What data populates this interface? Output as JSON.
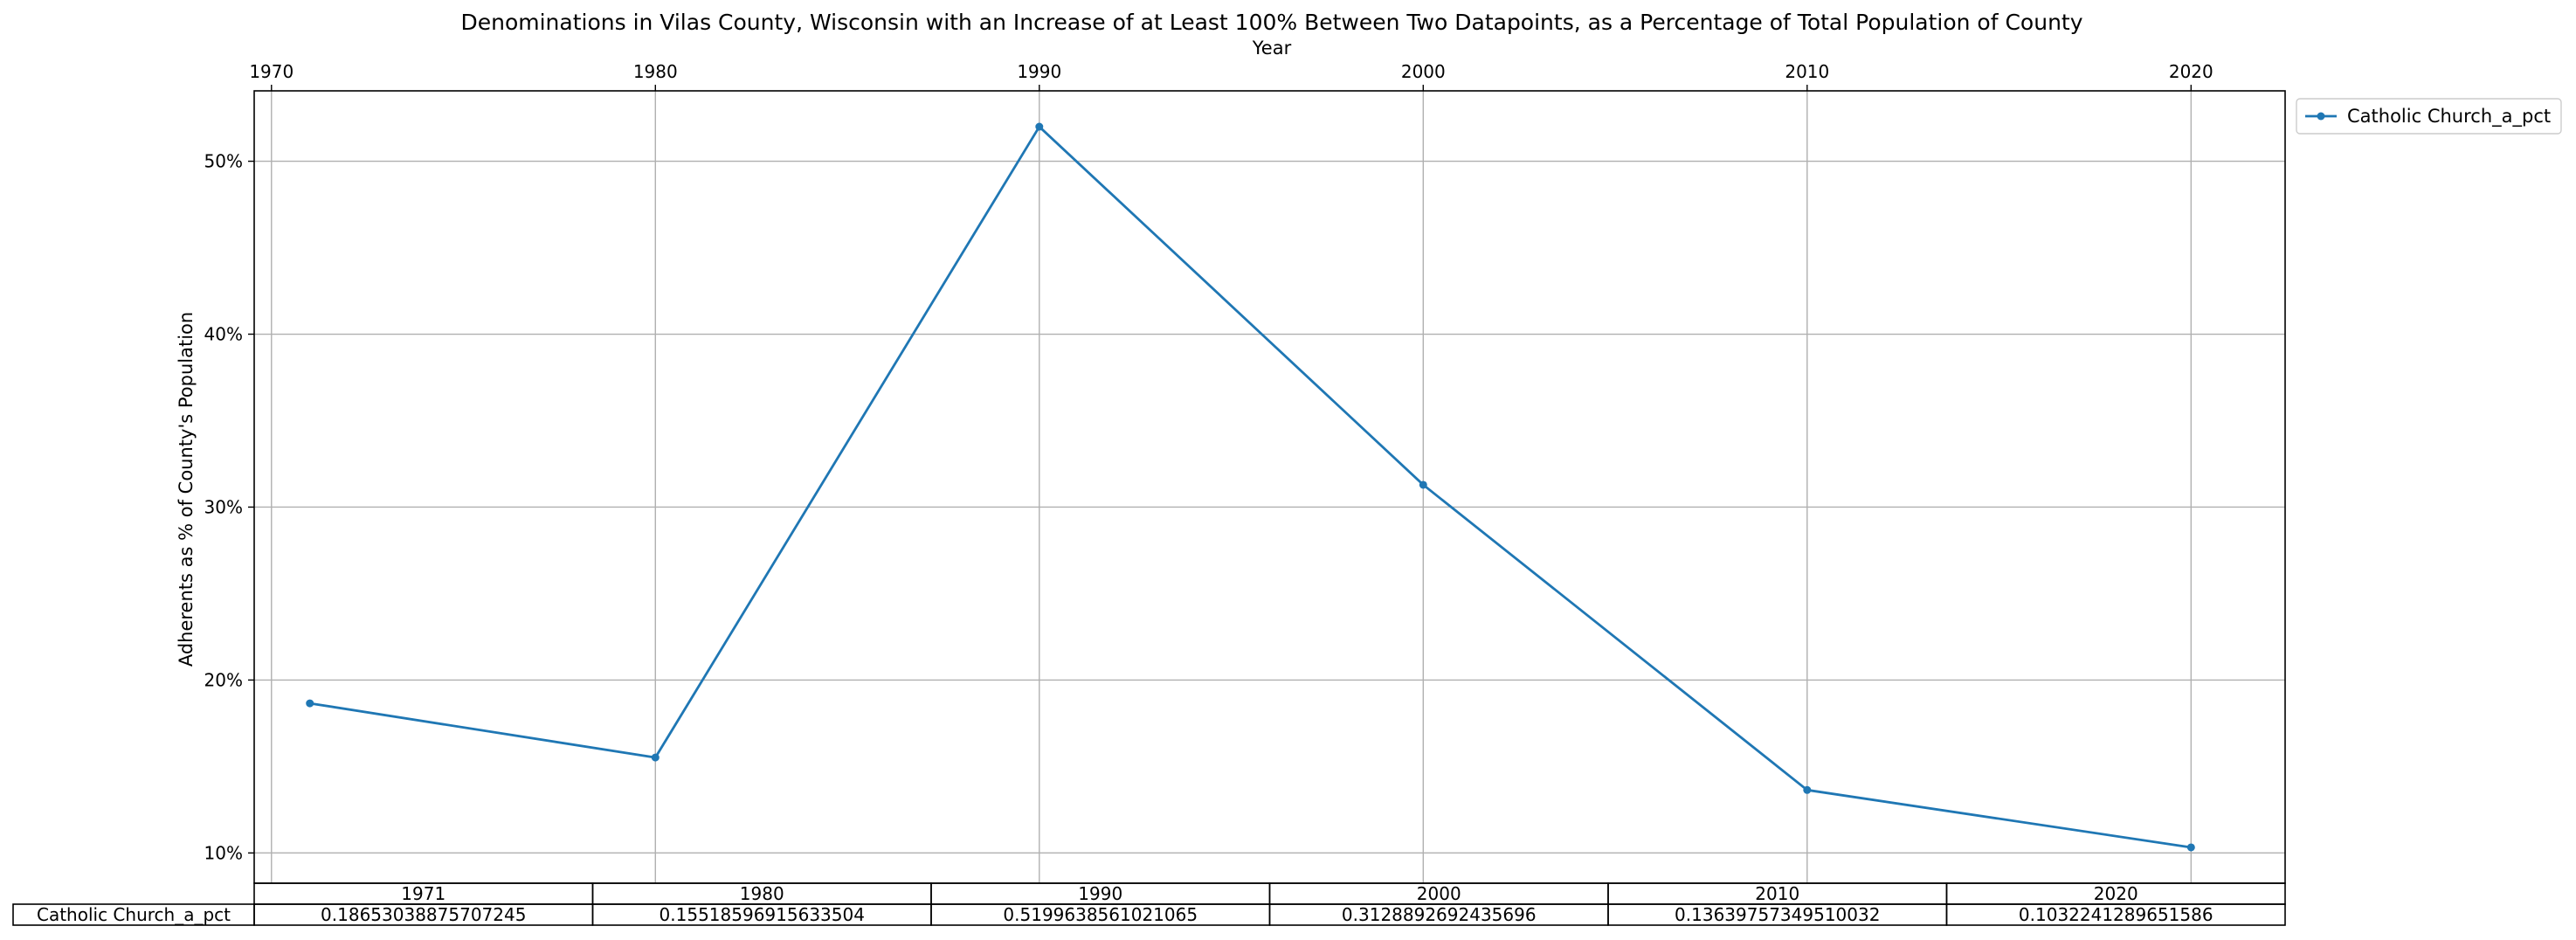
{
  "chart_data": {
    "type": "line",
    "title": "Denominations in Vilas County, Wisconsin with an Increase of at Least 100% Between Two Datapoints, as a Percentage of Total Population of County",
    "xlabel": "Year",
    "ylabel": "Adherents as % of County's Population",
    "x": [
      1971,
      1980,
      1990,
      2000,
      2010,
      2020
    ],
    "series": [
      {
        "name": "Catholic Church_a_pct",
        "values": [
          0.18653038875707245,
          0.15518596915633504,
          0.5199638561021065,
          0.3128892692435696,
          0.13639757349510032,
          0.1032241289651586
        ],
        "color": "#1f77b4"
      }
    ],
    "xlim": [
      1969.55,
      2022.45
    ],
    "ylim": [
      0.0825,
      0.5407
    ],
    "x_ticks": [
      1970,
      1980,
      1990,
      2000,
      2010,
      2020
    ],
    "x_tick_labels": [
      "1970",
      "1980",
      "1990",
      "2000",
      "2010",
      "2020"
    ],
    "x_axis_position": "top",
    "y_ticks": [
      0.1,
      0.2,
      0.3,
      0.4,
      0.5
    ],
    "y_tick_labels": [
      "10%",
      "20%",
      "30%",
      "40%",
      "50%"
    ],
    "grid": true,
    "legend_position": "outside-top-right",
    "table": {
      "columns": [
        "1971",
        "1980",
        "1990",
        "2000",
        "2010",
        "2020"
      ],
      "row_label": "Catholic Church_a_pct",
      "cells": [
        "0.18653038875707245",
        "0.15518596915633504",
        "0.5199638561021065",
        "0.3128892692435696",
        "0.13639757349510032",
        "0.1032241289651586"
      ]
    }
  }
}
